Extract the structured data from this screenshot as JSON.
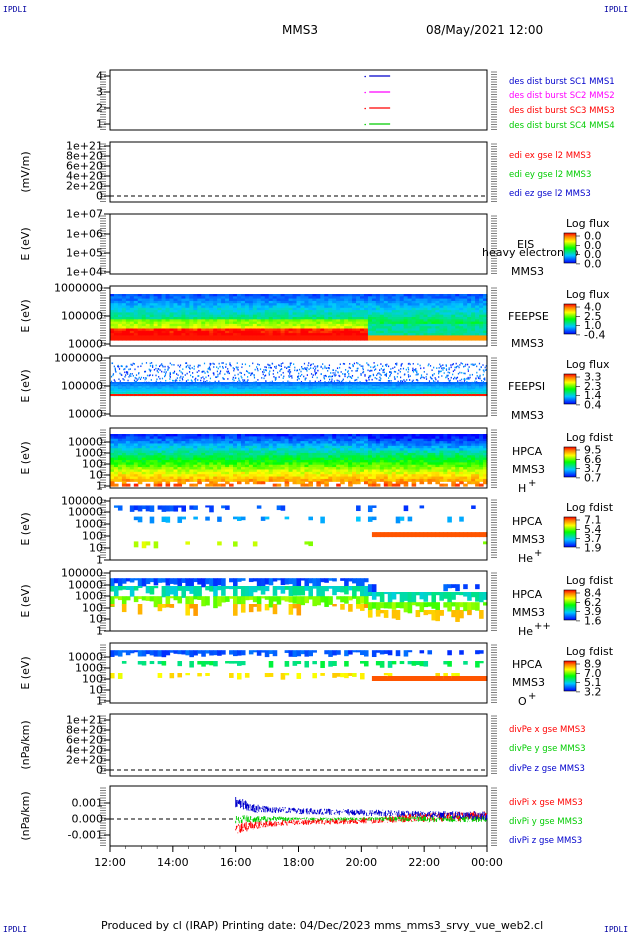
{
  "header": {
    "corner_left": "IPDLI",
    "corner_right": "IPDLI",
    "spacecraft": "MMS3",
    "datetime": "08/May/2021 12:00"
  },
  "footer": {
    "text": "Produced by cl (IRAP)   Printing date: 04/Dec/2023   mms_mms3_srvy_vue_web2.cl",
    "corner_left": "IPDLI",
    "corner_right": "IPDLI"
  },
  "colors": {
    "series_red": "#ff0000",
    "series_green": "#00cc00",
    "series_blue": "#0000ff",
    "series_magenta": "#ff00ff"
  },
  "chart_data": [
    {
      "id": "burst",
      "type": "line",
      "ylabel": "",
      "yticks": [
        "1",
        "2",
        "3",
        "4"
      ],
      "ylim": [
        0.5,
        4.5
      ],
      "x_range": [
        "12:00",
        "00:00"
      ],
      "series": [
        {
          "name": "des dist burst SC1 MMS1",
          "color": "#0000cc",
          "level": 4,
          "t_start": "20:15",
          "t_end": "20:55"
        },
        {
          "name": "des dist burst SC2 MMS2",
          "color": "#ff00ff",
          "level": 3,
          "t_start": "20:15",
          "t_end": "20:55"
        },
        {
          "name": "des dist burst SC3 MMS3",
          "color": "#ff0000",
          "level": 2,
          "t_start": "20:15",
          "t_end": "20:55"
        },
        {
          "name": "des dist burst SC4 MMS4",
          "color": "#00cc00",
          "level": 1,
          "t_start": "20:15",
          "t_end": "20:55"
        }
      ]
    },
    {
      "id": "edi",
      "type": "line",
      "ylabel": "(mV/m)",
      "yticks": [
        "0",
        "2e+20",
        "4e+20",
        "6e+20",
        "8e+20",
        "1e+21"
      ],
      "series": [
        {
          "name": "edi ex gse l2 MMS3",
          "color": "#ff0000"
        },
        {
          "name": "edi ey gse l2 MMS3",
          "color": "#00cc00"
        },
        {
          "name": "edi ez gse l2 MMS3",
          "color": "#0000cc"
        }
      ]
    },
    {
      "id": "eis",
      "type": "heatmap",
      "ylabel": "E (eV)",
      "yticks": [
        "1e+04",
        "1e+05",
        "1e+06",
        "1e+07"
      ],
      "instrument": "EIS",
      "overlay": "heavy electron to",
      "sc": "MMS3",
      "colorbar_title": "Log flux",
      "colorbar_ticks": [
        "0.0",
        "0.0",
        "0.0",
        "0.0"
      ]
    },
    {
      "id": "feepse",
      "type": "heatmap",
      "ylabel": "E (eV)",
      "yticks": [
        "10000",
        "100000",
        "1000000"
      ],
      "instrument": "FEEPSE",
      "sc": "MMS3",
      "colorbar_title": "Log flux",
      "colorbar_ticks": [
        "4.0",
        "2.5",
        "1.0",
        "-0.4"
      ]
    },
    {
      "id": "feepsi",
      "type": "heatmap",
      "ylabel": "E (eV)",
      "yticks": [
        "10000",
        "100000",
        "1000000"
      ],
      "instrument": "FEEPSI",
      "sc": "MMS3",
      "colorbar_title": "Log flux",
      "colorbar_ticks": [
        "3.3",
        "2.3",
        "1.4",
        "0.4"
      ]
    },
    {
      "id": "hpca_h",
      "type": "heatmap",
      "ylabel": "E (eV)",
      "yticks": [
        "1",
        "10",
        "100",
        "1000",
        "10000"
      ],
      "instrument": "HPCA",
      "sc": "MMS3",
      "species": "H",
      "charge": "+",
      "colorbar_title": "Log fdist",
      "colorbar_ticks": [
        "9.5",
        "6.6",
        "3.7",
        "0.7"
      ]
    },
    {
      "id": "hpca_he",
      "type": "heatmap",
      "ylabel": "E (eV)",
      "yticks": [
        "1",
        "10",
        "100",
        "1000",
        "10000",
        "100000"
      ],
      "instrument": "HPCA",
      "sc": "MMS3",
      "species": "He",
      "charge": "+",
      "colorbar_title": "Log fdist",
      "colorbar_ticks": [
        "7.1",
        "5.4",
        "3.7",
        "1.9"
      ]
    },
    {
      "id": "hpca_hepp",
      "type": "heatmap",
      "ylabel": "E (eV)",
      "yticks": [
        "1",
        "10",
        "100",
        "1000",
        "10000",
        "100000"
      ],
      "instrument": "HPCA",
      "sc": "MMS3",
      "species": "He",
      "charge": "++",
      "colorbar_title": "Log fdist",
      "colorbar_ticks": [
        "8.4",
        "6.2",
        "3.9",
        "1.6"
      ]
    },
    {
      "id": "hpca_o",
      "type": "heatmap",
      "ylabel": "E (eV)",
      "yticks": [
        "1",
        "10",
        "100",
        "1000",
        "10000"
      ],
      "instrument": "HPCA",
      "sc": "MMS3",
      "species": "O",
      "charge": "+",
      "colorbar_title": "Log fdist",
      "colorbar_ticks": [
        "8.9",
        "7.0",
        "5.1",
        "3.2"
      ]
    },
    {
      "id": "dfpe",
      "type": "line",
      "ylabel": "(nPa/km)",
      "yticks": [
        "0",
        "2e+20",
        "4e+20",
        "6e+20",
        "8e+20",
        "1e+21"
      ],
      "series": [
        {
          "name": "divPe x gse MMS3",
          "color": "#ff0000"
        },
        {
          "name": "divPe y gse MMS3",
          "color": "#00cc00"
        },
        {
          "name": "divPe z gse MMS3",
          "color": "#0000cc"
        }
      ]
    },
    {
      "id": "dfpi",
      "type": "line",
      "ylabel": "(nPa/km)",
      "yticks": [
        "-0.001",
        "0.000",
        "0.001"
      ],
      "ylim": [
        -0.0019,
        0.0019
      ],
      "data_start": "16:00",
      "x": [
        "16:00",
        "16:30",
        "17:00",
        "18:00",
        "20:00",
        "22:00",
        "00:00"
      ],
      "series": [
        {
          "name": "divPi x gse MMS3",
          "color": "#ff0000",
          "mean": [
            -0.0006,
            -0.0004,
            -0.0003,
            -0.0002,
            -0.0001,
            0.0001,
            0.0002
          ],
          "amp": [
            0.0004,
            0.0003,
            0.0002,
            0.0002,
            0.0002,
            0.0003,
            0.0003
          ]
        },
        {
          "name": "divPi y gse MMS3",
          "color": "#00cc00",
          "mean": [
            0.0,
            0.0,
            0.0,
            0.0,
            0.0,
            0.0,
            0.0
          ],
          "amp": [
            0.0003,
            0.0002,
            0.0002,
            0.0001,
            0.0001,
            0.0002,
            0.0002
          ]
        },
        {
          "name": "divPi z gse MMS3",
          "color": "#0000cc",
          "mean": [
            0.0011,
            0.0007,
            0.0006,
            0.0005,
            0.0004,
            0.0003,
            0.0002
          ],
          "amp": [
            0.0004,
            0.0003,
            0.0002,
            0.0002,
            0.0002,
            0.0002,
            0.0003
          ]
        }
      ]
    }
  ],
  "xaxis": {
    "ticks": [
      "12:00",
      "14:00",
      "16:00",
      "18:00",
      "20:00",
      "22:00",
      "00:00"
    ]
  }
}
